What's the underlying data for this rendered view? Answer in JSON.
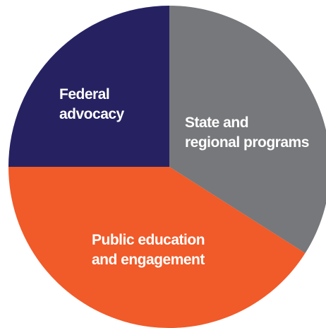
{
  "chart_data": {
    "type": "pie",
    "categories": [
      "State and\nregional programs",
      "Public education\nand engagement",
      "Federal\nadvocacy"
    ],
    "values": [
      34,
      41,
      25
    ],
    "colors": [
      "#77787b",
      "#f15a29",
      "#262262"
    ]
  }
}
